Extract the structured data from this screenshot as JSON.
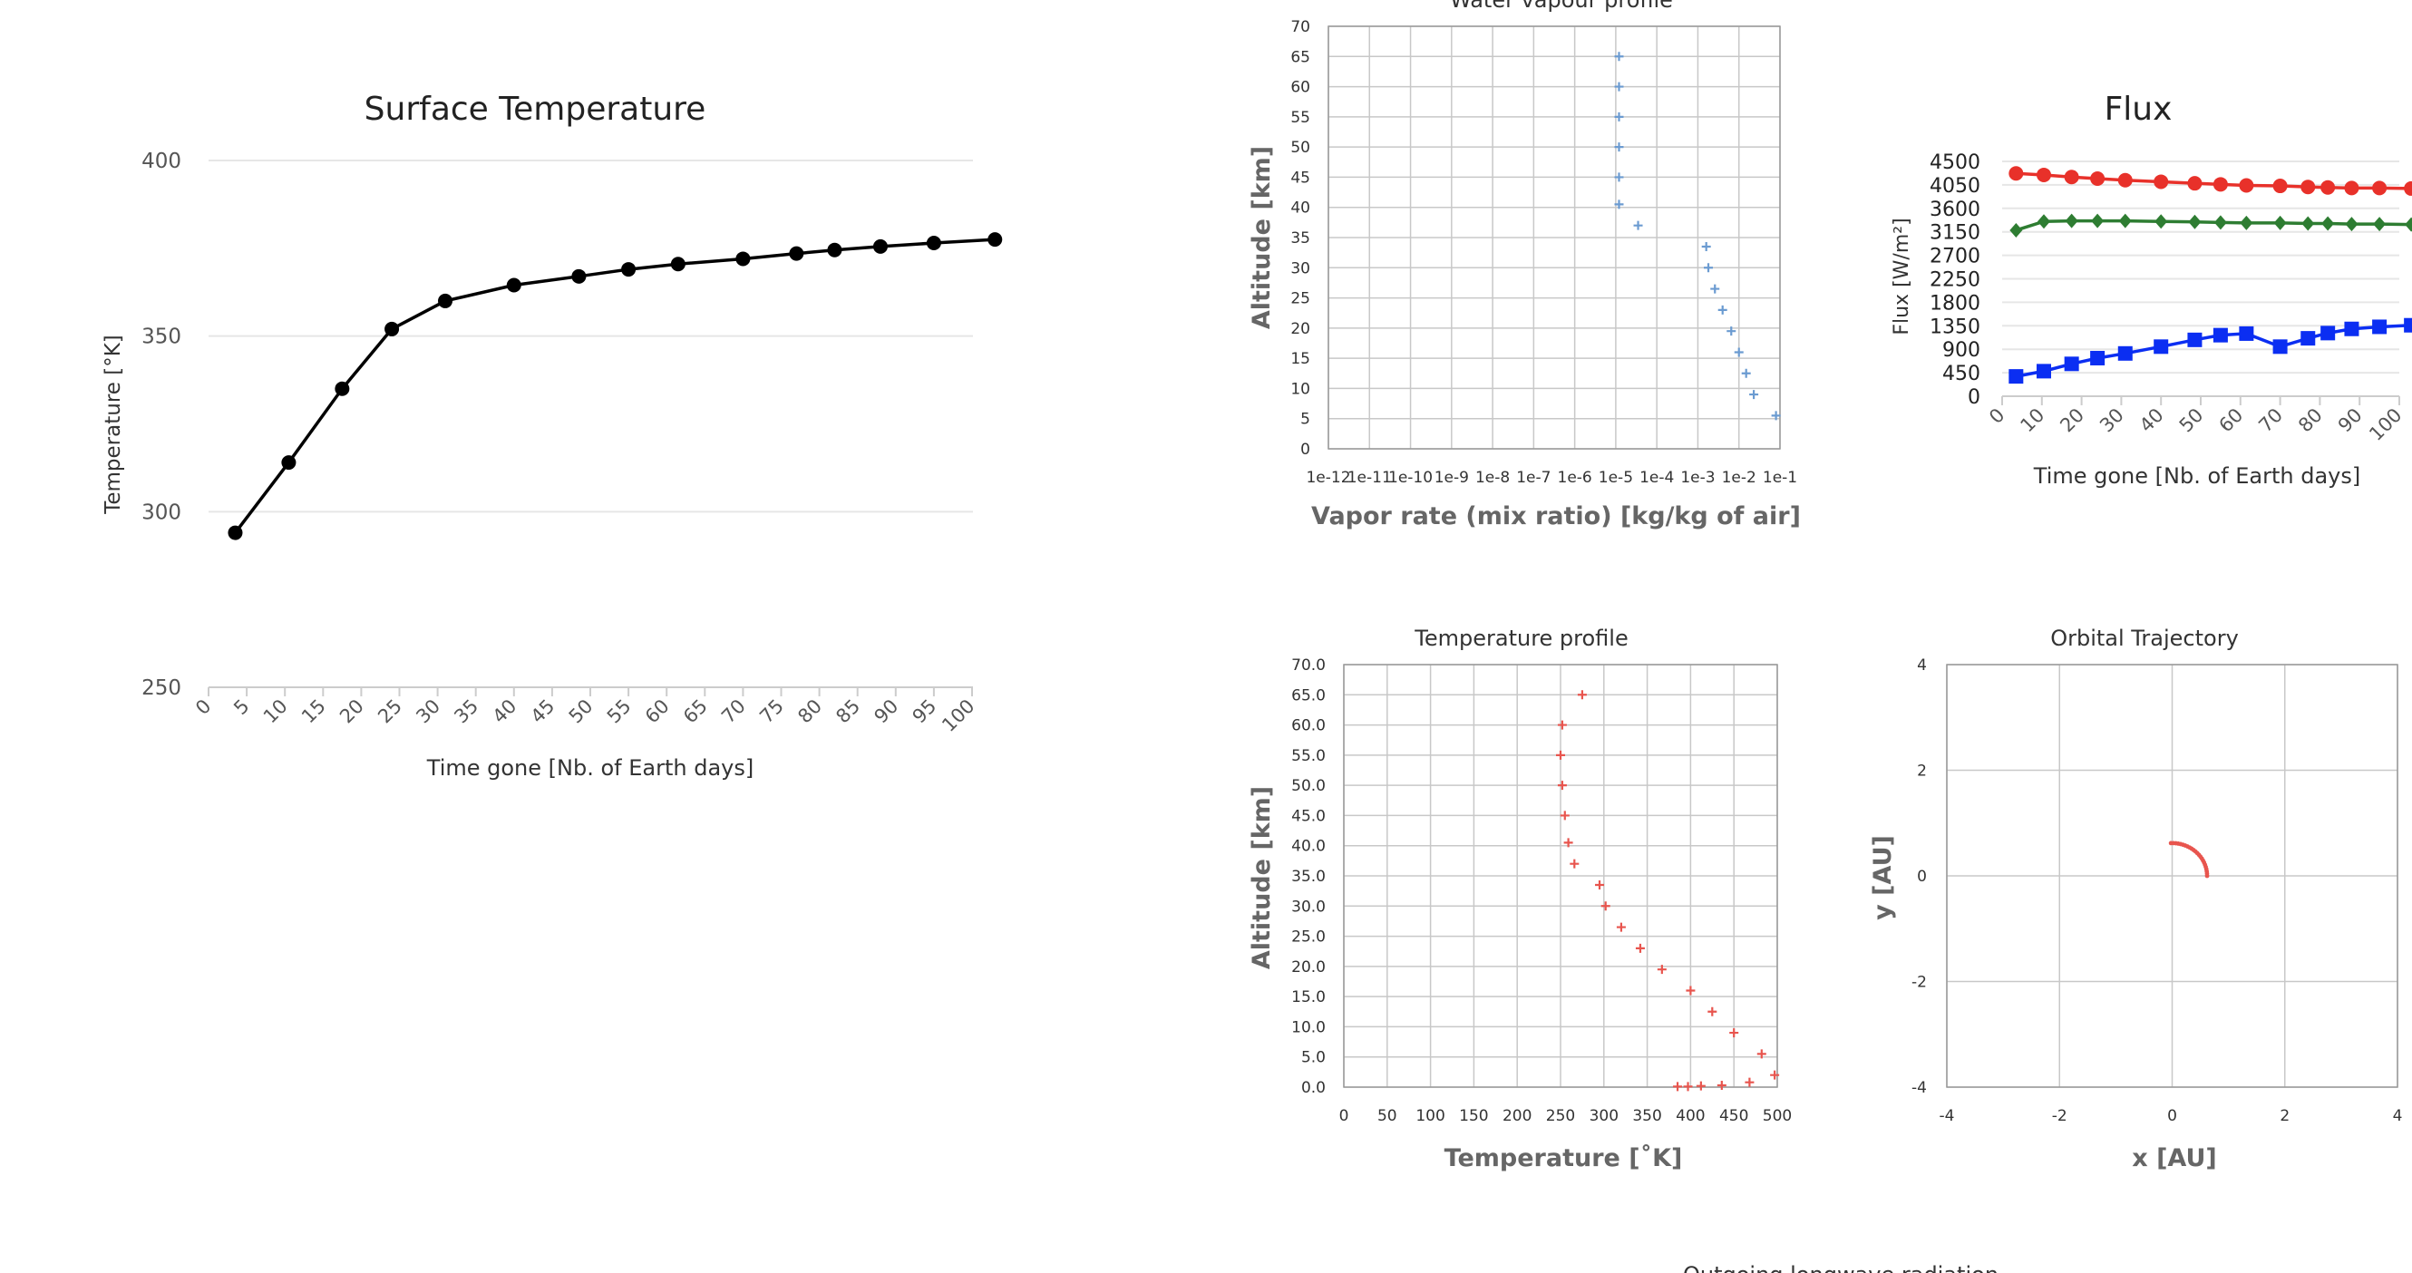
{
  "charts": {
    "surface": {
      "title": "Surface Temperature",
      "ylabel": "Temperature [°K]",
      "xlabel": "Time gone [Nb. of Earth days]"
    },
    "vapour": {
      "title": "Water vapour profile",
      "ylabel": "Altitude [km]",
      "xlabel": "Vapor rate (mix ratio) [kg/kg of air]"
    },
    "flux": {
      "title": "Flux",
      "ylabel": "Flux [W/m²]",
      "xlabel": "Time gone [Nb. of Earth days]"
    },
    "temperature": {
      "title": "Temperature profile",
      "ylabel": "Altitude [km]",
      "xlabel": "Temperature [˚K]"
    },
    "orbit": {
      "title": "Orbital Trajectory",
      "ylabel": "y [AU]",
      "xlabel": "x [AU]"
    },
    "olr": {
      "title": "Outgoing longwave radiation"
    }
  },
  "chart_data": [
    {
      "id": "surface",
      "type": "line",
      "title": "Surface Temperature",
      "xlabel": "Time gone [Nb. of Earth days]",
      "ylabel": "Temperature [°K]",
      "xlim": [
        0,
        100
      ],
      "ylim": [
        250,
        400
      ],
      "x_ticks": [
        0,
        5,
        10,
        15,
        20,
        25,
        30,
        35,
        40,
        45,
        50,
        55,
        60,
        65,
        70,
        75,
        80,
        85,
        90,
        95,
        100
      ],
      "y_ticks": [
        250,
        300,
        350,
        400
      ],
      "grid": "horizontal",
      "color": "#000000",
      "x": [
        3.5,
        10.5,
        17.5,
        24.0,
        31.0,
        40.0,
        48.5,
        55.0,
        61.5,
        70.0,
        77.0,
        82.0,
        88.0,
        95.0,
        103.0
      ],
      "y": [
        294,
        314,
        335,
        352,
        360,
        364.5,
        367,
        369,
        370.5,
        372,
        373.5,
        374.5,
        375.5,
        376.5,
        377.5
      ]
    },
    {
      "id": "vapour",
      "type": "scatter",
      "title": "Water vapour profile",
      "xlabel": "Vapor rate (mix ratio) [kg/kg of air]",
      "ylabel": "Altitude [km]",
      "x_scale": "log",
      "xlim": [
        1e-12,
        0.1
      ],
      "ylim": [
        0,
        70
      ],
      "x_ticks": [
        "1e-12",
        "1e-11",
        "1e-10",
        "1e-9",
        "1e-8",
        "1e-7",
        "1e-6",
        "1e-5",
        "1e-4",
        "1e-3",
        "1e-2",
        "1e-1"
      ],
      "y_ticks": [
        0,
        5,
        10,
        15,
        20,
        25,
        30,
        35,
        40,
        45,
        50,
        55,
        60,
        65,
        70
      ],
      "grid": true,
      "color": "#6b9bd1",
      "points": [
        {
          "x": 1.2e-05,
          "y": 65
        },
        {
          "x": 1.2e-05,
          "y": 60
        },
        {
          "x": 1.2e-05,
          "y": 55
        },
        {
          "x": 1.2e-05,
          "y": 50
        },
        {
          "x": 1.2e-05,
          "y": 45
        },
        {
          "x": 1.2e-05,
          "y": 40.5
        },
        {
          "x": 3.5e-05,
          "y": 37
        },
        {
          "x": 0.0016,
          "y": 33.5
        },
        {
          "x": 0.0018,
          "y": 30
        },
        {
          "x": 0.0026,
          "y": 26.5
        },
        {
          "x": 0.004,
          "y": 23
        },
        {
          "x": 0.0065,
          "y": 19.5
        },
        {
          "x": 0.01,
          "y": 16
        },
        {
          "x": 0.015,
          "y": 12.5
        },
        {
          "x": 0.023,
          "y": 9
        },
        {
          "x": 0.08,
          "y": 5.5
        }
      ]
    },
    {
      "id": "flux",
      "type": "line",
      "title": "Flux",
      "xlabel": "Time gone [Nb. of Earth days]",
      "ylabel": "Flux [W/m²]",
      "xlim": [
        0,
        100
      ],
      "ylim": [
        0,
        4500
      ],
      "x_ticks": [
        0,
        10,
        20,
        30,
        40,
        50,
        60,
        70,
        80,
        90,
        100
      ],
      "y_ticks": [
        0,
        450,
        900,
        1350,
        1800,
        2250,
        2700,
        3150,
        3600,
        4050,
        4500
      ],
      "grid": "horizontal",
      "series": [
        {
          "marker": "circle",
          "color": "#e8312a",
          "x": [
            3.5,
            10.5,
            17.5,
            24.0,
            31.0,
            40.0,
            48.5,
            55.0,
            61.5,
            70.0,
            77.0,
            82.0,
            88.0,
            95.0,
            103.0
          ],
          "y": [
            4270,
            4240,
            4200,
            4170,
            4140,
            4110,
            4080,
            4060,
            4040,
            4030,
            4010,
            4000,
            3990,
            3990,
            3980
          ]
        },
        {
          "marker": "diamond",
          "color": "#2e7d32",
          "x": [
            3.5,
            10.5,
            17.5,
            24.0,
            31.0,
            40.0,
            48.5,
            55.0,
            61.5,
            70.0,
            77.0,
            82.0,
            88.0,
            95.0,
            103.0
          ],
          "y": [
            3180,
            3350,
            3360,
            3360,
            3360,
            3350,
            3340,
            3330,
            3320,
            3320,
            3310,
            3310,
            3300,
            3300,
            3290
          ]
        },
        {
          "marker": "square",
          "color": "#0b2ef2",
          "x": [
            3.5,
            10.5,
            17.5,
            24.0,
            31.0,
            40.0,
            48.5,
            55.0,
            61.5,
            70.0,
            77.0,
            82.0,
            88.0,
            95.0,
            103.0
          ],
          "y": [
            380,
            480,
            620,
            730,
            820,
            950,
            1080,
            1170,
            1200,
            950,
            1110,
            1210,
            1290,
            1330,
            1360
          ]
        }
      ]
    },
    {
      "id": "temperature",
      "type": "scatter",
      "title": "Temperature profile",
      "xlabel": "Temperature [˚K]",
      "ylabel": "Altitude [km]",
      "xlim": [
        0,
        500
      ],
      "ylim": [
        0,
        70
      ],
      "x_ticks": [
        0,
        50,
        100,
        150,
        200,
        250,
        300,
        350,
        400,
        450,
        500
      ],
      "y_ticks": [
        "0.0",
        "5.0",
        "10.0",
        "15.0",
        "20.0",
        "25.0",
        "30.0",
        "35.0",
        "40.0",
        "45.0",
        "50.0",
        "55.0",
        "60.0",
        "65.0",
        "70.0"
      ],
      "grid": true,
      "color": "#e8554e",
      "points": [
        {
          "x": 275,
          "y": 65
        },
        {
          "x": 252,
          "y": 60
        },
        {
          "x": 250,
          "y": 55
        },
        {
          "x": 252,
          "y": 50
        },
        {
          "x": 255,
          "y": 45
        },
        {
          "x": 259,
          "y": 40.5
        },
        {
          "x": 266,
          "y": 37
        },
        {
          "x": 295,
          "y": 33.5
        },
        {
          "x": 302,
          "y": 30
        },
        {
          "x": 320,
          "y": 26.5
        },
        {
          "x": 342,
          "y": 23
        },
        {
          "x": 367,
          "y": 19.5
        },
        {
          "x": 400,
          "y": 16
        },
        {
          "x": 425,
          "y": 12.5
        },
        {
          "x": 450,
          "y": 9
        },
        {
          "x": 482,
          "y": 5.5
        },
        {
          "x": 497,
          "y": 2
        },
        {
          "x": 468,
          "y": 0.8
        },
        {
          "x": 436,
          "y": 0.3
        },
        {
          "x": 412,
          "y": 0.2
        },
        {
          "x": 397,
          "y": 0.1
        },
        {
          "x": 385,
          "y": 0.1
        }
      ]
    },
    {
      "id": "orbit",
      "type": "scatter",
      "title": "Orbital Trajectory",
      "xlabel": "x [AU]",
      "ylabel": "y [AU]",
      "xlim": [
        -4,
        4
      ],
      "ylim": [
        -4,
        4
      ],
      "x_ticks": [
        -4,
        -2,
        0,
        2,
        4
      ],
      "y_ticks": [
        -4,
        -2,
        0,
        2,
        4
      ],
      "grid": true,
      "color": "#e8554e",
      "arc": {
        "r": 0.62,
        "start_deg": 0,
        "end_deg": 92,
        "count": 24
      }
    },
    {
      "id": "olr",
      "type": "line",
      "title": "Outgoing longwave radiation"
    }
  ]
}
